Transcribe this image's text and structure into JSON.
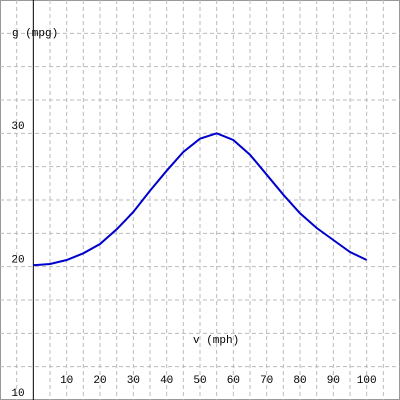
{
  "chart_data": {
    "type": "line",
    "x_label": "v (mph)",
    "y_label": "g (mpg)",
    "x": [
      0,
      5,
      10,
      15,
      20,
      25,
      30,
      35,
      40,
      45,
      50,
      55,
      60,
      65,
      70,
      75,
      80,
      85,
      90,
      95,
      100
    ],
    "series": [
      {
        "name": "g",
        "color": "#0000cc",
        "values": [
          20.1,
          20.2,
          20.5,
          21.0,
          21.7,
          22.8,
          24.1,
          25.7,
          27.2,
          28.6,
          29.6,
          30.0,
          29.5,
          28.4,
          26.9,
          25.4,
          24.0,
          22.9,
          22.0,
          21.1,
          20.5
        ]
      }
    ],
    "xlim": [
      -10,
      110
    ],
    "ylim": [
      10,
      40
    ],
    "xticks": [
      10,
      20,
      30,
      40,
      50,
      60,
      70,
      80,
      90,
      100
    ],
    "yticks": [
      10,
      20,
      30
    ],
    "xgrid": [
      -5,
      5,
      10,
      15,
      20,
      25,
      30,
      35,
      40,
      45,
      50,
      55,
      60,
      65,
      70,
      75,
      80,
      85,
      90,
      95,
      100,
      105
    ],
    "ygrid": [
      12.5,
      15,
      17.5,
      20,
      22.5,
      25,
      27.5,
      30,
      32.5,
      35,
      37.5
    ],
    "grid": true
  }
}
